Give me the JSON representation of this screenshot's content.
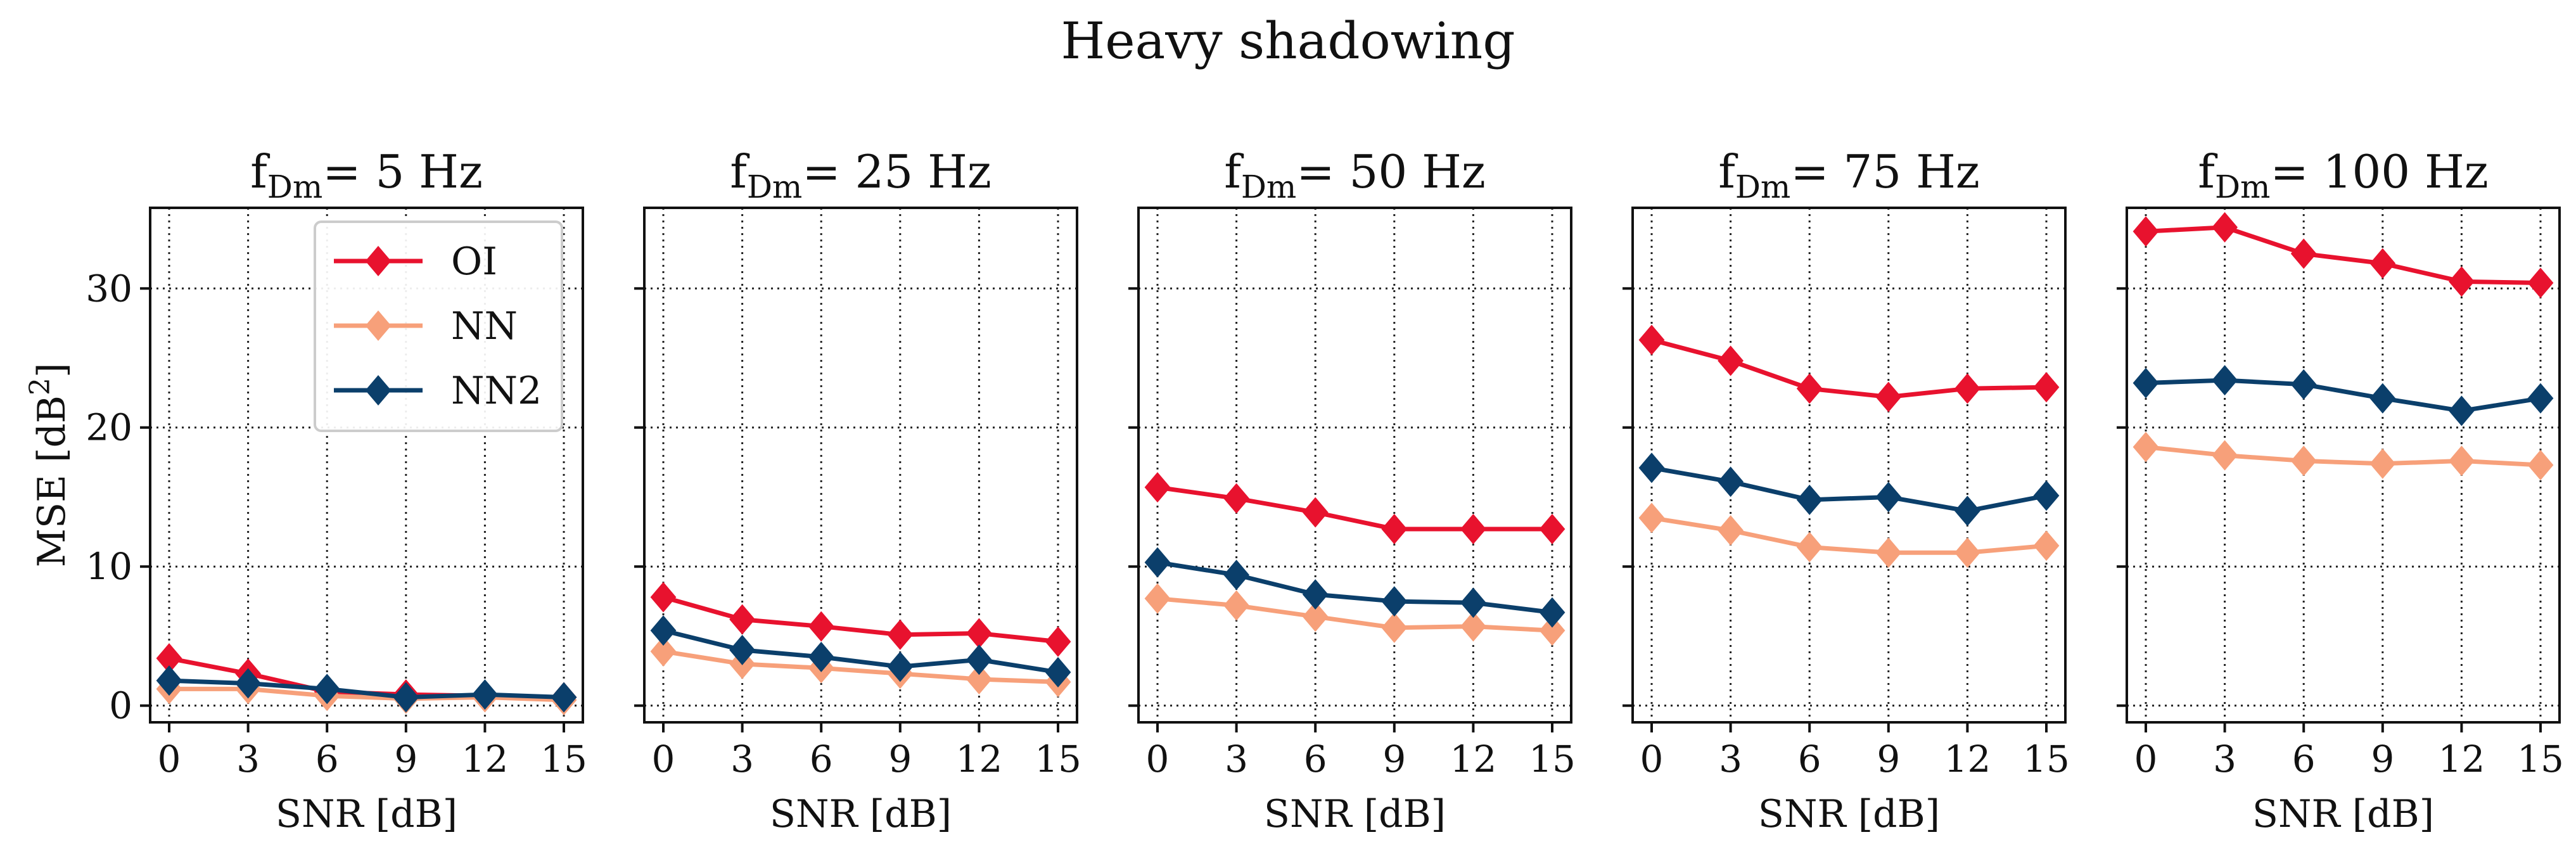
{
  "chart_data": {
    "type": "line",
    "title": "Heavy shadowing",
    "x": [
      0,
      3,
      6,
      9,
      12,
      15
    ],
    "xlabel": "SNR [dB]",
    "ylabel_base": "MSE [dB",
    "ylabel_sup": "2",
    "ylabel_close": "]",
    "ylim": [
      -1.2,
      35.8
    ],
    "yticks": [
      0,
      10,
      20,
      30
    ],
    "colors": {
      "OI": "#e8122e",
      "NN": "#f7a07a",
      "NN2": "#0b3f6b"
    },
    "legend": {
      "placement": "upper-left of first panel",
      "entries": [
        "OI",
        "NN",
        "NN2"
      ]
    },
    "panels": [
      {
        "title_main": "f",
        "title_sub": "Dm",
        "title_rest": "= 5 Hz",
        "series": [
          {
            "name": "OI",
            "values": [
              3.4,
              2.3,
              1.0,
              0.8,
              0.7,
              0.6
            ]
          },
          {
            "name": "NN",
            "values": [
              1.2,
              1.2,
              0.7,
              0.5,
              0.6,
              0.4
            ]
          },
          {
            "name": "NN2",
            "values": [
              1.8,
              1.6,
              1.2,
              0.6,
              0.8,
              0.6
            ]
          }
        ]
      },
      {
        "title_main": "f",
        "title_sub": "Dm",
        "title_rest": "= 25 Hz",
        "series": [
          {
            "name": "OI",
            "values": [
              7.8,
              6.2,
              5.7,
              5.1,
              5.2,
              4.6
            ]
          },
          {
            "name": "NN",
            "values": [
              3.9,
              3.0,
              2.7,
              2.3,
              1.9,
              1.7
            ]
          },
          {
            "name": "NN2",
            "values": [
              5.4,
              4.0,
              3.5,
              2.8,
              3.3,
              2.4
            ]
          }
        ]
      },
      {
        "title_main": "f",
        "title_sub": "Dm",
        "title_rest": "= 50 Hz",
        "series": [
          {
            "name": "OI",
            "values": [
              15.7,
              14.9,
              13.9,
              12.7,
              12.7,
              12.7
            ]
          },
          {
            "name": "NN",
            "values": [
              7.7,
              7.2,
              6.4,
              5.6,
              5.7,
              5.4
            ]
          },
          {
            "name": "NN2",
            "values": [
              10.3,
              9.4,
              8.0,
              7.5,
              7.4,
              6.7
            ]
          }
        ]
      },
      {
        "title_main": "f",
        "title_sub": "Dm",
        "title_rest": "= 75 Hz",
        "series": [
          {
            "name": "OI",
            "values": [
              26.3,
              24.8,
              22.8,
              22.2,
              22.8,
              22.9
            ]
          },
          {
            "name": "NN",
            "values": [
              13.5,
              12.6,
              11.4,
              11.0,
              11.0,
              11.5
            ]
          },
          {
            "name": "NN2",
            "values": [
              17.1,
              16.1,
              14.8,
              15.0,
              14.0,
              15.1
            ]
          }
        ]
      },
      {
        "title_main": "f",
        "title_sub": "Dm",
        "title_rest": "= 100 Hz",
        "series": [
          {
            "name": "OI",
            "values": [
              34.1,
              34.4,
              32.5,
              31.8,
              30.5,
              30.4
            ]
          },
          {
            "name": "NN",
            "values": [
              18.6,
              18.0,
              17.6,
              17.4,
              17.6,
              17.3
            ]
          },
          {
            "name": "NN2",
            "values": [
              23.2,
              23.4,
              23.1,
              22.1,
              21.2,
              22.1
            ]
          }
        ]
      }
    ]
  }
}
